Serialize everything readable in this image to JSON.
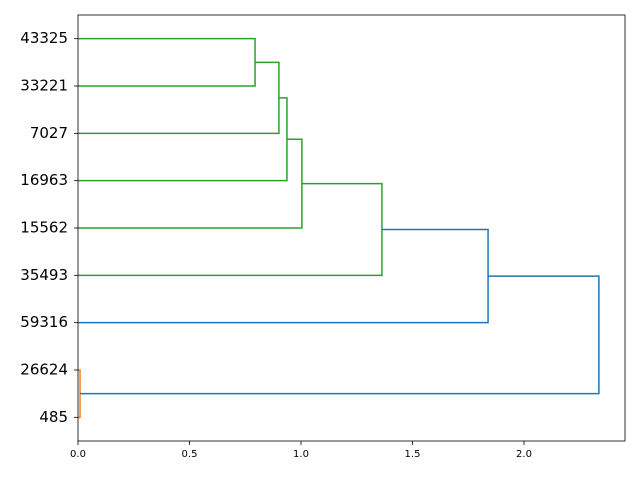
{
  "chart_data": {
    "type": "dendrogram",
    "orientation": "right",
    "leaves": [
      "43325",
      "33221",
      "7027",
      "16963",
      "15562",
      "35493",
      "59316",
      "26624",
      "485"
    ],
    "links": [
      {
        "left": 0,
        "right": 1,
        "height": 0.794,
        "color": "#2ca02c"
      },
      {
        "left": 9,
        "right": 2,
        "height": 0.901,
        "color": "#2ca02c"
      },
      {
        "left": 10,
        "right": 3,
        "height": 0.937,
        "color": "#2ca02c"
      },
      {
        "left": 11,
        "right": 4,
        "height": 1.004,
        "color": "#2ca02c"
      },
      {
        "left": 12,
        "right": 5,
        "height": 1.363,
        "color": "#2ca02c"
      },
      {
        "left": 7,
        "right": 8,
        "height": 0.009,
        "color": "#ff7f0e"
      },
      {
        "left": 13,
        "right": 6,
        "height": 1.839,
        "color": "#1f77b4"
      },
      {
        "left": 15,
        "right": 14,
        "height": 2.336,
        "color": "#1f77b4"
      }
    ],
    "xlim": [
      0,
      2.453
    ],
    "xticks": [
      {
        "value": 0,
        "label": "0.0"
      },
      0.5,
      {
        "value": 1,
        "label": "1.0"
      },
      1.5,
      {
        "value": 2,
        "label": "2.0"
      }
    ]
  }
}
